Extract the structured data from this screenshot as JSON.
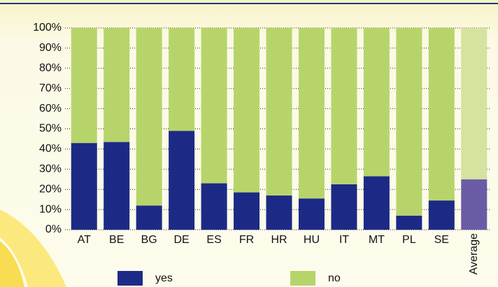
{
  "chart_data": {
    "type": "stacked_bar",
    "categories": [
      "AT",
      "BE",
      "BG",
      "DE",
      "ES",
      "FR",
      "HR",
      "HU",
      "IT",
      "MT",
      "PL",
      "SE",
      "Average"
    ],
    "series": [
      {
        "name": "yes",
        "color": "#1c2a86",
        "colors": [
          "#1c2a86",
          "#1c2a86",
          "#1c2a86",
          "#1c2a86",
          "#1c2a86",
          "#1c2a86",
          "#1c2a86",
          "#1c2a86",
          "#1c2a86",
          "#1c2a86",
          "#1c2a86",
          "#1c2a86",
          "#6b5ba6"
        ],
        "values": [
          43,
          43.5,
          12,
          49,
          23,
          18.5,
          17,
          15.5,
          22.5,
          26.5,
          7,
          14.5,
          25
        ]
      },
      {
        "name": "no",
        "color": "#b7d46b",
        "colors": [
          "#b7d46b",
          "#b7d46b",
          "#b7d46b",
          "#b7d46b",
          "#b7d46b",
          "#b7d46b",
          "#b7d46b",
          "#b7d46b",
          "#b7d46b",
          "#b7d46b",
          "#b7d46b",
          "#b7d46b",
          "#d4e3a0"
        ],
        "values": [
          57,
          56.5,
          88,
          51,
          77,
          81.5,
          83,
          84.5,
          77.5,
          73.5,
          93,
          85.5,
          75
        ]
      }
    ],
    "ylim": [
      0,
      100
    ],
    "yticks": [
      {
        "value": 0,
        "label": "0%"
      },
      {
        "value": 10,
        "label": "10%"
      },
      {
        "value": 20,
        "label": "20%"
      },
      {
        "value": 30,
        "label": "30%"
      },
      {
        "value": 40,
        "label": "40%"
      },
      {
        "value": 50,
        "label": "50%"
      },
      {
        "value": 60,
        "label": "60%"
      },
      {
        "value": 70,
        "label": "70%"
      },
      {
        "value": 80,
        "label": "80%"
      },
      {
        "value": 90,
        "label": "90%"
      },
      {
        "value": 100,
        "label": "100%"
      }
    ],
    "grid": true,
    "legend": "bottom"
  }
}
